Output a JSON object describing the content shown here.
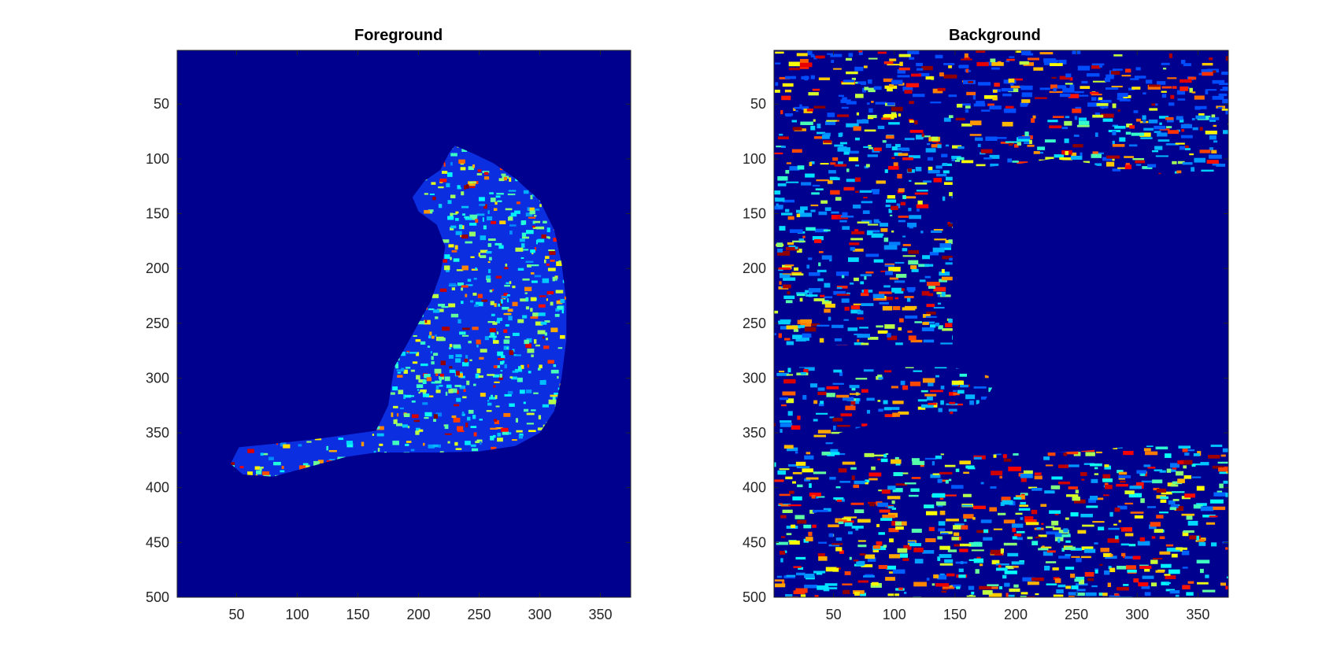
{
  "chart_data": [
    {
      "type": "heatmap",
      "title": "Foreground",
      "xlim": [
        1,
        375
      ],
      "ylim": [
        1,
        500
      ],
      "y_reversed": true,
      "x_ticks": [
        50,
        100,
        150,
        200,
        250,
        300,
        350
      ],
      "y_ticks": [
        50,
        100,
        150,
        200,
        250,
        300,
        350,
        400,
        450,
        500
      ],
      "colormap": "jet",
      "background_color": "#00008f",
      "content": "cat silhouette with high-intensity edge texture; rest of image near zero",
      "subject_outline": [
        [
          230,
          88
        ],
        [
          245,
          95
        ],
        [
          262,
          104
        ],
        [
          280,
          118
        ],
        [
          300,
          138
        ],
        [
          312,
          165
        ],
        [
          318,
          195
        ],
        [
          322,
          230
        ],
        [
          322,
          265
        ],
        [
          318,
          300
        ],
        [
          312,
          330
        ],
        [
          300,
          350
        ],
        [
          280,
          362
        ],
        [
          250,
          367
        ],
        [
          215,
          368
        ],
        [
          190,
          368
        ],
        [
          165,
          368
        ],
        [
          140,
          372
        ],
        [
          110,
          381
        ],
        [
          80,
          390
        ],
        [
          55,
          388
        ],
        [
          45,
          378
        ],
        [
          52,
          363
        ],
        [
          80,
          360
        ],
        [
          120,
          355
        ],
        [
          165,
          348
        ],
        [
          175,
          325
        ],
        [
          180,
          290
        ],
        [
          195,
          260
        ],
        [
          210,
          230
        ],
        [
          218,
          205
        ],
        [
          222,
          180
        ],
        [
          215,
          160
        ],
        [
          200,
          148
        ],
        [
          195,
          135
        ],
        [
          205,
          120
        ],
        [
          218,
          110
        ],
        [
          225,
          95
        ]
      ]
    },
    {
      "type": "heatmap",
      "title": "Background",
      "xlim": [
        1,
        375
      ],
      "ylim": [
        1,
        500
      ],
      "y_reversed": true,
      "x_ticks": [
        50,
        100,
        150,
        200,
        250,
        300,
        350
      ],
      "y_ticks": [
        50,
        100,
        150,
        200,
        250,
        300,
        350,
        400,
        450,
        500
      ],
      "colormap": "jet",
      "background_color": "#00008f",
      "content": "scene texture with cat region and horizontal band masked to zero",
      "masked_outline": [
        [
          148,
          110
        ],
        [
          200,
          105
        ],
        [
          230,
          100
        ],
        [
          262,
          104
        ],
        [
          285,
          115
        ],
        [
          375,
          112
        ],
        [
          375,
          360
        ],
        [
          300,
          362
        ],
        [
          250,
          367
        ],
        [
          215,
          368
        ],
        [
          165,
          370
        ],
        [
          120,
          368
        ],
        [
          70,
          366
        ],
        [
          48,
          362
        ],
        [
          55,
          350
        ],
        [
          90,
          340
        ],
        [
          130,
          330
        ],
        [
          150,
          335
        ],
        [
          175,
          320
        ],
        [
          185,
          300
        ],
        [
          148,
          290
        ],
        [
          0,
          290
        ],
        [
          0,
          270
        ],
        [
          148,
          270
        ]
      ]
    }
  ]
}
